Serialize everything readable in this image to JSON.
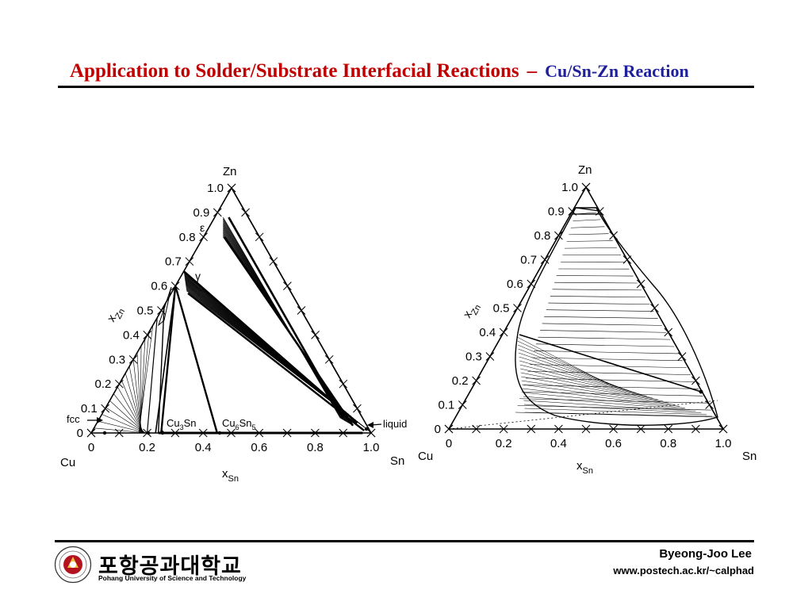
{
  "header": {
    "title_main": "Application to Solder/Substrate Interfacial Reactions",
    "title_separator": "–",
    "title_sub": "Cu/Sn-Zn Reaction"
  },
  "diagrams": [
    {
      "top_label": "Zn",
      "left_label": "Cu",
      "right_label": "Sn",
      "x_axis_label": "x",
      "x_axis_subscript": "Sn",
      "left_axis_label": "x",
      "left_axis_subscript": "Zn",
      "bottom_ticks": [
        "0",
        "0.2",
        "0.4",
        "0.6",
        "0.8",
        "1.0"
      ],
      "left_ticks": [
        "0",
        "0.1",
        "0.2",
        "0.3",
        "0.4",
        "0.5",
        "0.6",
        "0.7",
        "0.8",
        "0.9",
        "1.0"
      ],
      "phase_epsilon": "ε",
      "phase_gamma": "γ",
      "phase_fcc": "fcc",
      "phase_cu3sn": "Cu3Sn",
      "phase_cu6sn5": "Cu6Sn5",
      "phase_liquid": "liquid"
    },
    {
      "top_label": "Zn",
      "left_label": "Cu",
      "right_label": "Sn",
      "x_axis_label": "x",
      "x_axis_subscript": "Sn",
      "left_axis_label": "x",
      "left_axis_subscript": "Zn",
      "bottom_ticks": [
        "0",
        "0.2",
        "0.4",
        "0.6",
        "0.8",
        "1.0"
      ],
      "left_ticks": [
        "0",
        "0.1",
        "0.2",
        "0.3",
        "0.4",
        "0.5",
        "0.6",
        "0.7",
        "0.8",
        "0.9",
        "1.0"
      ]
    }
  ],
  "footer": {
    "university_korean": "포항공과대학교",
    "university_english": "Pohang University of Science and Technology",
    "author": "Byeong-Joo Lee",
    "url": "www.postech.ac.kr/~calphad"
  },
  "colors": {
    "title_red": "#c00000",
    "title_blue": "#1f1f9a",
    "logo_red": "#b3121f"
  },
  "icons": {
    "logo": "postech-emblem-icon"
  }
}
